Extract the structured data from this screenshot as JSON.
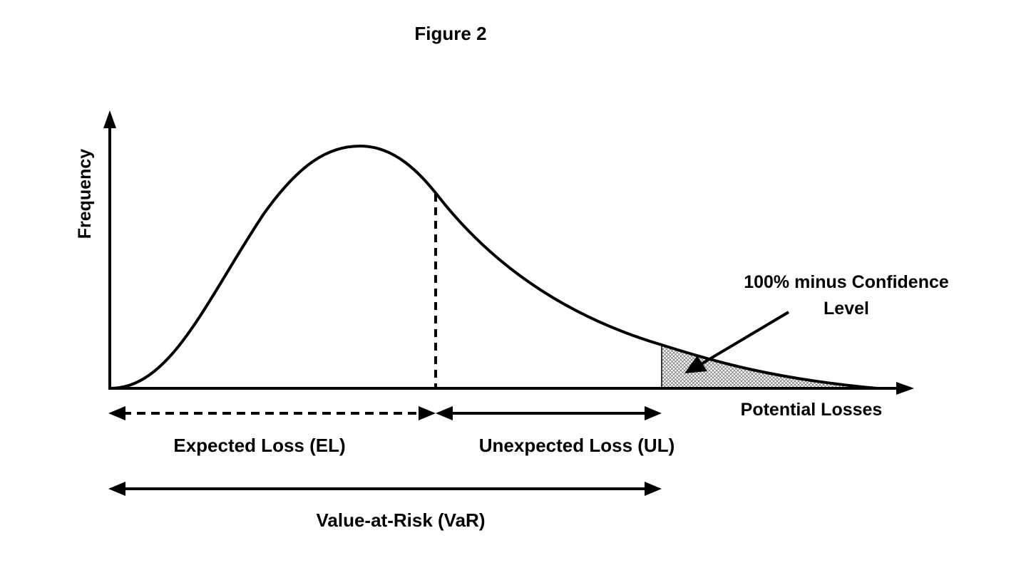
{
  "figure": {
    "title": "Figure 2",
    "y_axis_label": "Frequency",
    "x_axis_label": "Potential Losses",
    "annotation_line1": "100% minus Confidence",
    "annotation_line2": "Level",
    "expected_loss_label": "Expected Loss (EL)",
    "unexpected_loss_label": "Unexpected Loss (UL)",
    "var_label": "Value-at-Risk (VaR)"
  },
  "colors": {
    "ink": "#000000",
    "background": "#ffffff",
    "tail_fill": "#9a9a9a"
  },
  "icons": {
    "axis_arrow": "arrowhead-icon",
    "pointer": "pointer-arrow-icon"
  }
}
